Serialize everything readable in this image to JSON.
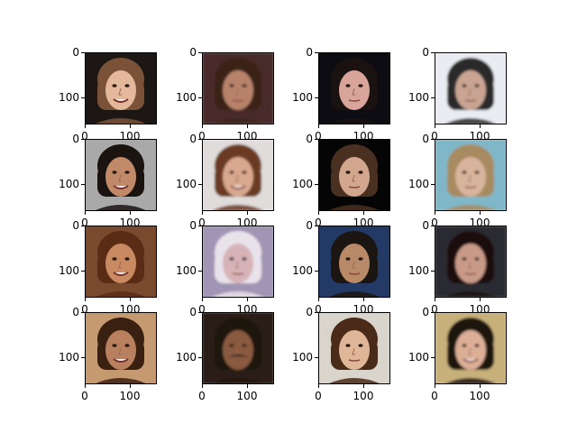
{
  "figure": {
    "grid": {
      "rows": 4,
      "cols": 4
    },
    "axes": {
      "x_ticks": [
        "0",
        "100"
      ],
      "y_ticks": [
        "0",
        "100"
      ]
    },
    "panels": [
      {
        "subject": "smiling-woman-light-brown-hair",
        "background": "#1c1714",
        "skin": "#e3b89b",
        "hair": "#7a5238",
        "mouth": "smile"
      },
      {
        "subject": "blurry-man-dark-hair-glasses",
        "background": "#4a2a2a",
        "skin": "#b8826a",
        "hair": "#3a2418",
        "mouth": "neutral"
      },
      {
        "subject": "woman-dark-hair-makeup",
        "background": "#0c0c12",
        "skin": "#d9a59a",
        "hair": "#1a1210",
        "mouth": "neutral"
      },
      {
        "subject": "blurry-person-sunglasses-bright",
        "background": "#e9ecf2",
        "skin": "#c9a493",
        "hair": "#2a2a2a",
        "mouth": "neutral"
      },
      {
        "subject": "man-spiky-hair-phone",
        "background": "#a9a9a9",
        "skin": "#c08a68",
        "hair": "#1a1410",
        "mouth": "smile"
      },
      {
        "subject": "blurry-woman-brown-hair",
        "background": "#e0dcda",
        "skin": "#d9a88e",
        "hair": "#6a3a24",
        "mouth": "smile"
      },
      {
        "subject": "man-dark-background",
        "background": "#050505",
        "skin": "#d3a78e",
        "hair": "#4a3020",
        "mouth": "neutral"
      },
      {
        "subject": "blurry-young-man-blond",
        "background": "#7fb7c8",
        "skin": "#d8b49c",
        "hair": "#a88a60",
        "mouth": "neutral"
      },
      {
        "subject": "smiling-woman-long-brown-hair",
        "background": "#7a4a2e",
        "skin": "#c98a62",
        "hair": "#5a2c16",
        "mouth": "smile"
      },
      {
        "subject": "blurry-older-woman-white-hair",
        "background": "#a095b4",
        "skin": "#d7b3b8",
        "hair": "#e8e2ea",
        "mouth": "neutral"
      },
      {
        "subject": "man-curly-hair-blue-shirt",
        "background": "#243a66",
        "skin": "#b98a68",
        "hair": "#1c1612",
        "mouth": "neutral"
      },
      {
        "subject": "blurry-woman-dark-hair",
        "background": "#2a2a30",
        "skin": "#c99a88",
        "hair": "#1a1010",
        "mouth": "neutral"
      },
      {
        "subject": "smiling-woman-curly-hair",
        "background": "#c59a70",
        "skin": "#b8805e",
        "hair": "#3a2010",
        "mouth": "smile"
      },
      {
        "subject": "blurry-man-mustache",
        "background": "#2a1e18",
        "skin": "#8a5a40",
        "hair": "#1e120c",
        "mouth": "mustache"
      },
      {
        "subject": "woman-hand-on-head",
        "background": "#d9d4cc",
        "skin": "#e0b699",
        "hair": "#4a2a18",
        "mouth": "neutral"
      },
      {
        "subject": "blurry-smiling-woman-dark-hair",
        "background": "#c8b07a",
        "skin": "#dcae96",
        "hair": "#1e1210",
        "mouth": "smile"
      }
    ]
  }
}
